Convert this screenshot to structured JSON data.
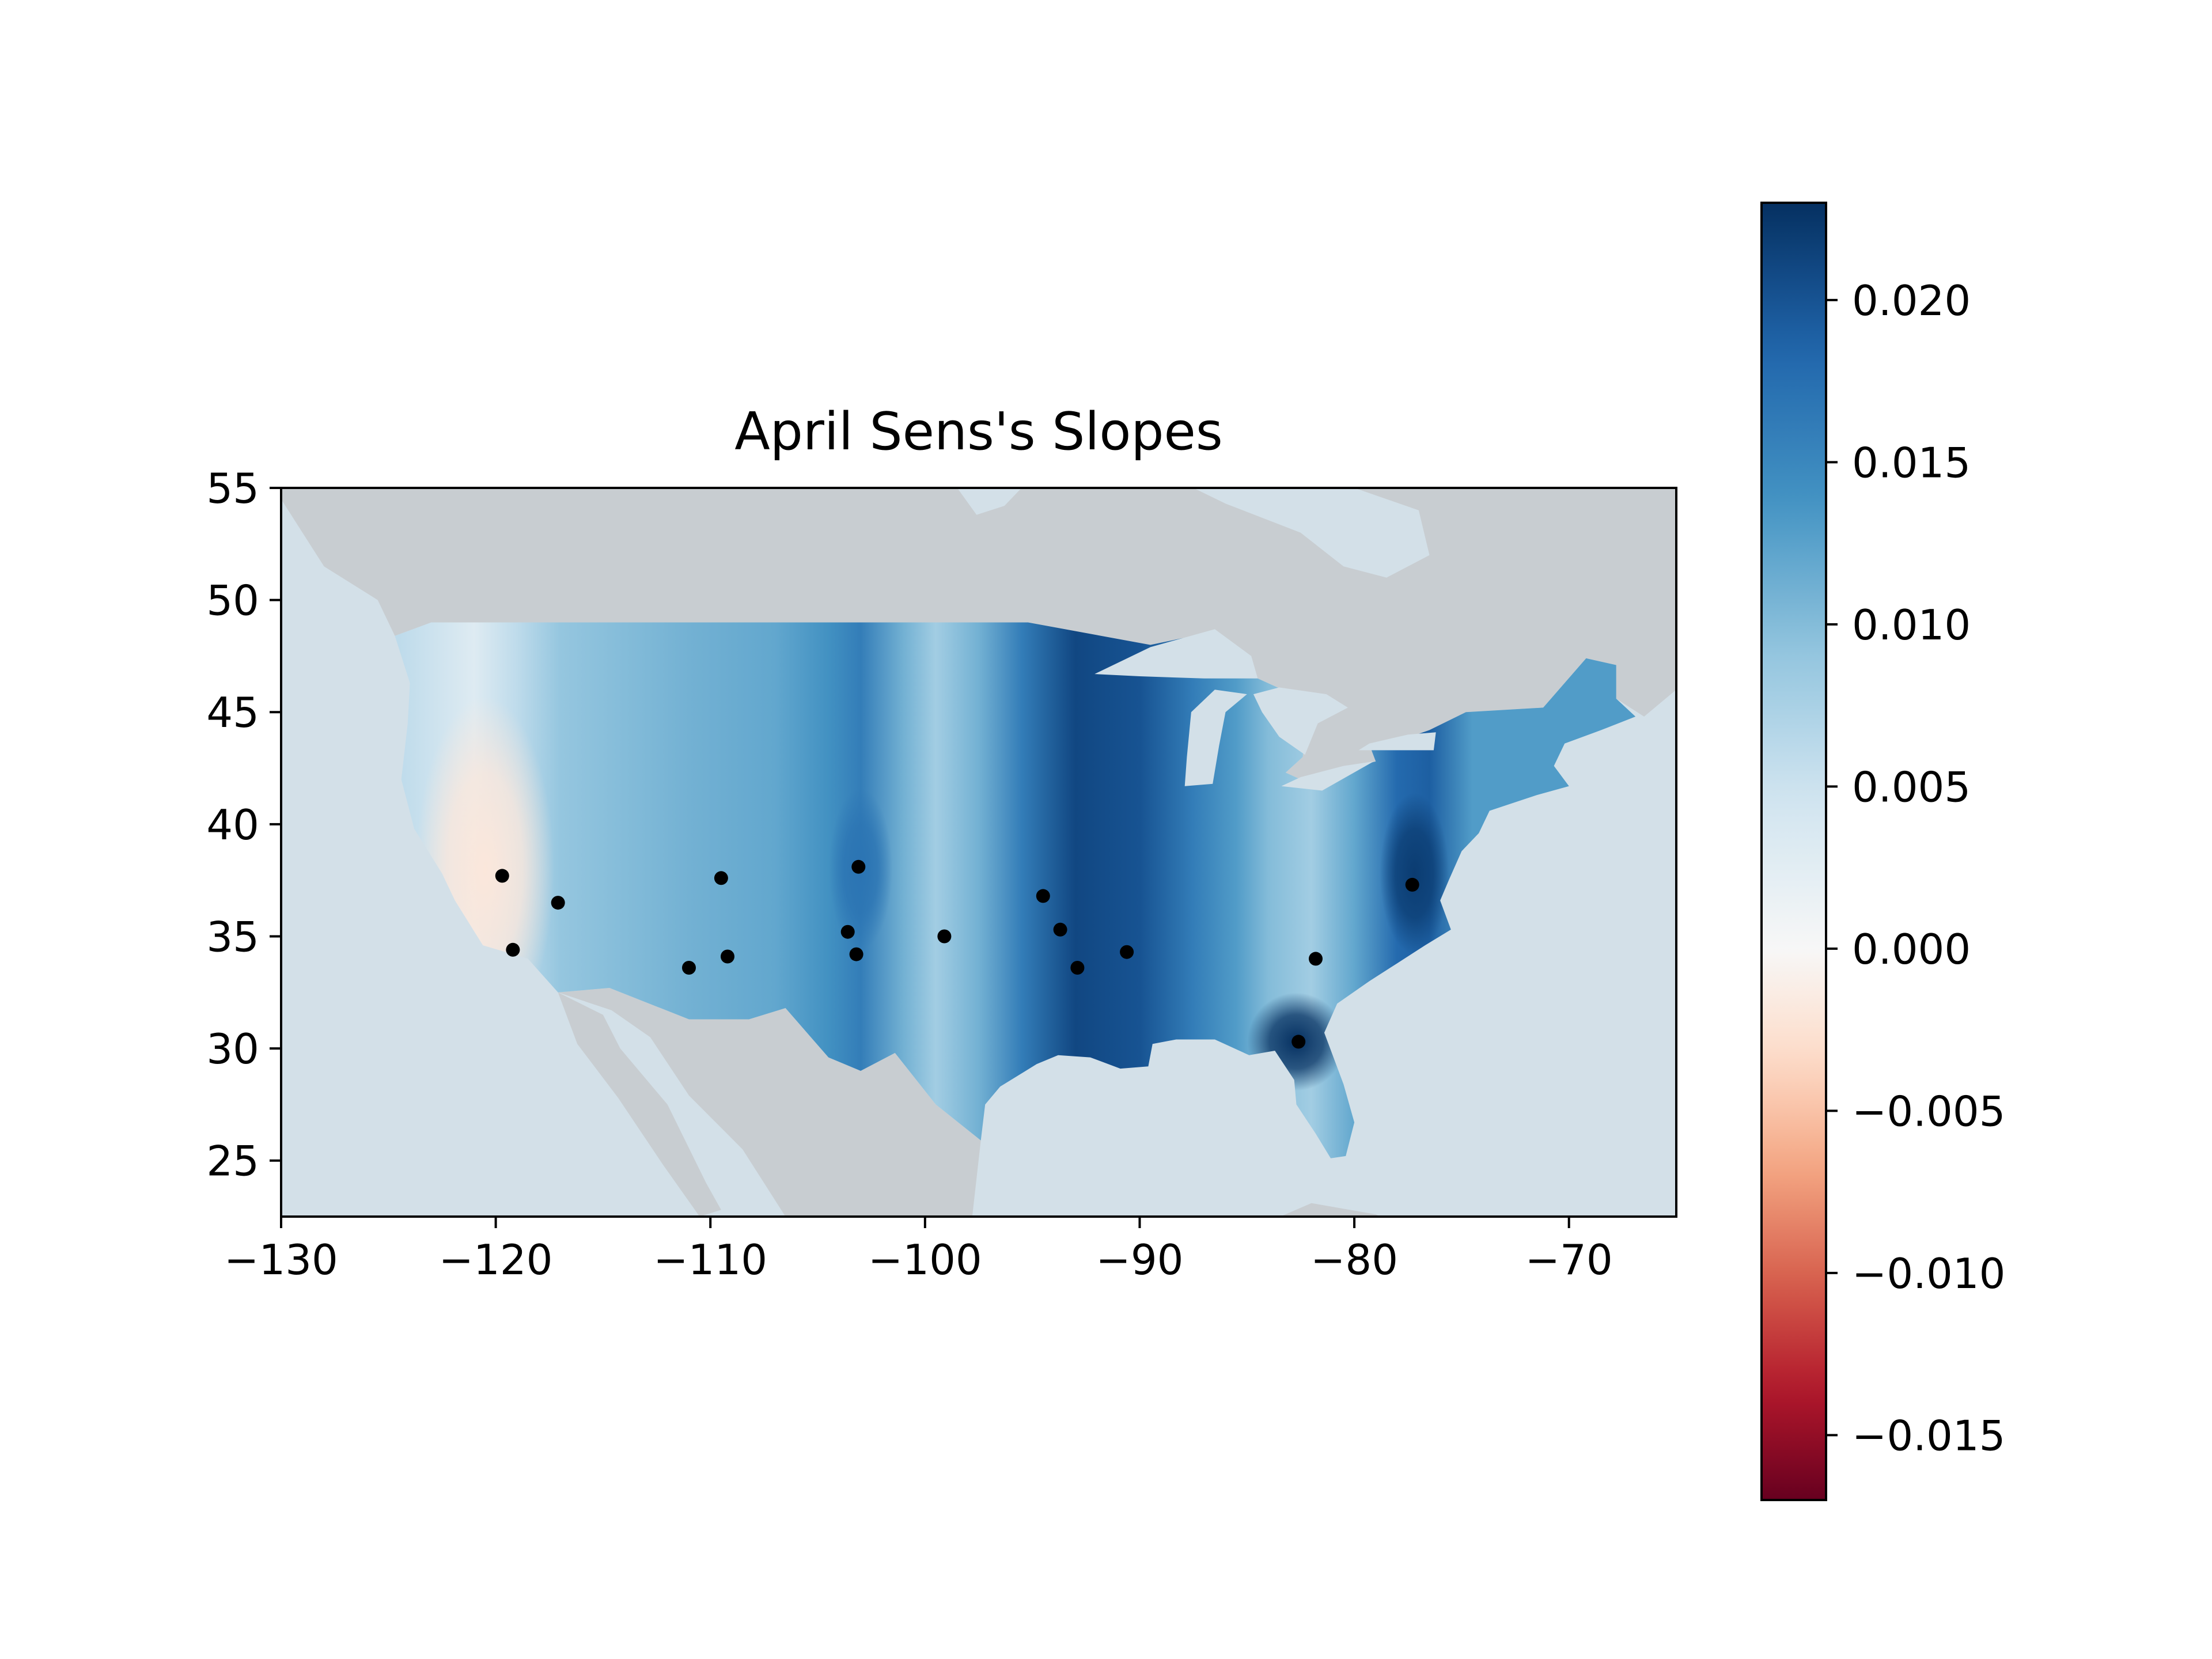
{
  "figure": {
    "title": "April Sens's Slopes"
  },
  "map": {
    "projection": "plate-carree",
    "lon_range": [
      -130,
      -65
    ],
    "lat_range": [
      22.5,
      55
    ],
    "land_color": "#c8cdd1",
    "water_color": "#d3e0e8",
    "border_color": "#ffffff",
    "x_ticks": [
      -130,
      -120,
      -110,
      -100,
      -90,
      -80,
      -70
    ],
    "x_tick_labels": [
      "−130",
      "−120",
      "−110",
      "−100",
      "−90",
      "−80",
      "−70"
    ],
    "y_ticks": [
      25,
      30,
      35,
      40,
      45,
      50,
      55
    ],
    "y_tick_labels": [
      "25",
      "30",
      "35",
      "40",
      "45",
      "50",
      "55"
    ]
  },
  "chart_data": {
    "type": "heatmap",
    "title": "April Sens's Slopes",
    "xlim": [
      -130,
      -65
    ],
    "ylim": [
      22.5,
      55
    ],
    "colormap": "RdBu",
    "color_range": [
      -0.017,
      0.023
    ],
    "stations": [
      {
        "lon": -119.7,
        "lat": 37.7
      },
      {
        "lon": -117.1,
        "lat": 36.5
      },
      {
        "lon": -119.2,
        "lat": 34.4
      },
      {
        "lon": -109.5,
        "lat": 37.6
      },
      {
        "lon": -111.0,
        "lat": 33.6
      },
      {
        "lon": -109.2,
        "lat": 34.1
      },
      {
        "lon": -103.1,
        "lat": 38.1
      },
      {
        "lon": -103.6,
        "lat": 35.2
      },
      {
        "lon": -103.2,
        "lat": 34.2
      },
      {
        "lon": -99.1,
        "lat": 35.0
      },
      {
        "lon": -94.5,
        "lat": 36.8
      },
      {
        "lon": -93.7,
        "lat": 35.3
      },
      {
        "lon": -92.9,
        "lat": 33.6
      },
      {
        "lon": -90.6,
        "lat": 34.3
      },
      {
        "lon": -82.6,
        "lat": 30.3
      },
      {
        "lon": -81.8,
        "lat": 34.0
      },
      {
        "lon": -77.3,
        "lat": 37.3
      }
    ],
    "field_profile": [
      {
        "lon": -124.5,
        "value": 0.006
      },
      {
        "lon": -123.0,
        "value": 0.005
      },
      {
        "lon": -121.0,
        "value": 0.003
      },
      {
        "lon": -119.0,
        "value": 0.006
      },
      {
        "lon": -117.0,
        "value": 0.009
      },
      {
        "lon": -114.0,
        "value": 0.01
      },
      {
        "lon": -111.0,
        "value": 0.011
      },
      {
        "lon": -107.0,
        "value": 0.012
      },
      {
        "lon": -104.5,
        "value": 0.014
      },
      {
        "lon": -103.0,
        "value": 0.016
      },
      {
        "lon": -101.0,
        "value": 0.011
      },
      {
        "lon": -99.5,
        "value": 0.008
      },
      {
        "lon": -97.5,
        "value": 0.011
      },
      {
        "lon": -95.5,
        "value": 0.016
      },
      {
        "lon": -93.0,
        "value": 0.021
      },
      {
        "lon": -90.0,
        "value": 0.02
      },
      {
        "lon": -87.5,
        "value": 0.016
      },
      {
        "lon": -85.5,
        "value": 0.013
      },
      {
        "lon": -84.0,
        "value": 0.01
      },
      {
        "lon": -82.0,
        "value": 0.008
      },
      {
        "lon": -80.0,
        "value": 0.012
      },
      {
        "lon": -78.0,
        "value": 0.018
      },
      {
        "lon": -76.5,
        "value": 0.019
      },
      {
        "lon": -74.5,
        "value": 0.013
      },
      {
        "lon": -71.0,
        "value": 0.013
      },
      {
        "lon": -67.0,
        "value": 0.013
      }
    ],
    "hotspots": [
      {
        "lon": -120.5,
        "lat": 38.0,
        "value": -0.002
      },
      {
        "lon": -82.7,
        "lat": 30.3,
        "value": 0.023
      },
      {
        "lon": -77.2,
        "lat": 37.8,
        "value": 0.022
      },
      {
        "lon": -103.0,
        "lat": 38.0,
        "value": 0.017
      }
    ]
  },
  "colorbar": {
    "range": [
      -0.017,
      0.023
    ],
    "ticks": [
      -0.015,
      -0.01,
      -0.005,
      0.0,
      0.005,
      0.01,
      0.015,
      0.02
    ],
    "tick_labels": [
      "−0.015",
      "−0.010",
      "−0.005",
      "0.000",
      "0.005",
      "0.010",
      "0.015",
      "0.020"
    ]
  }
}
